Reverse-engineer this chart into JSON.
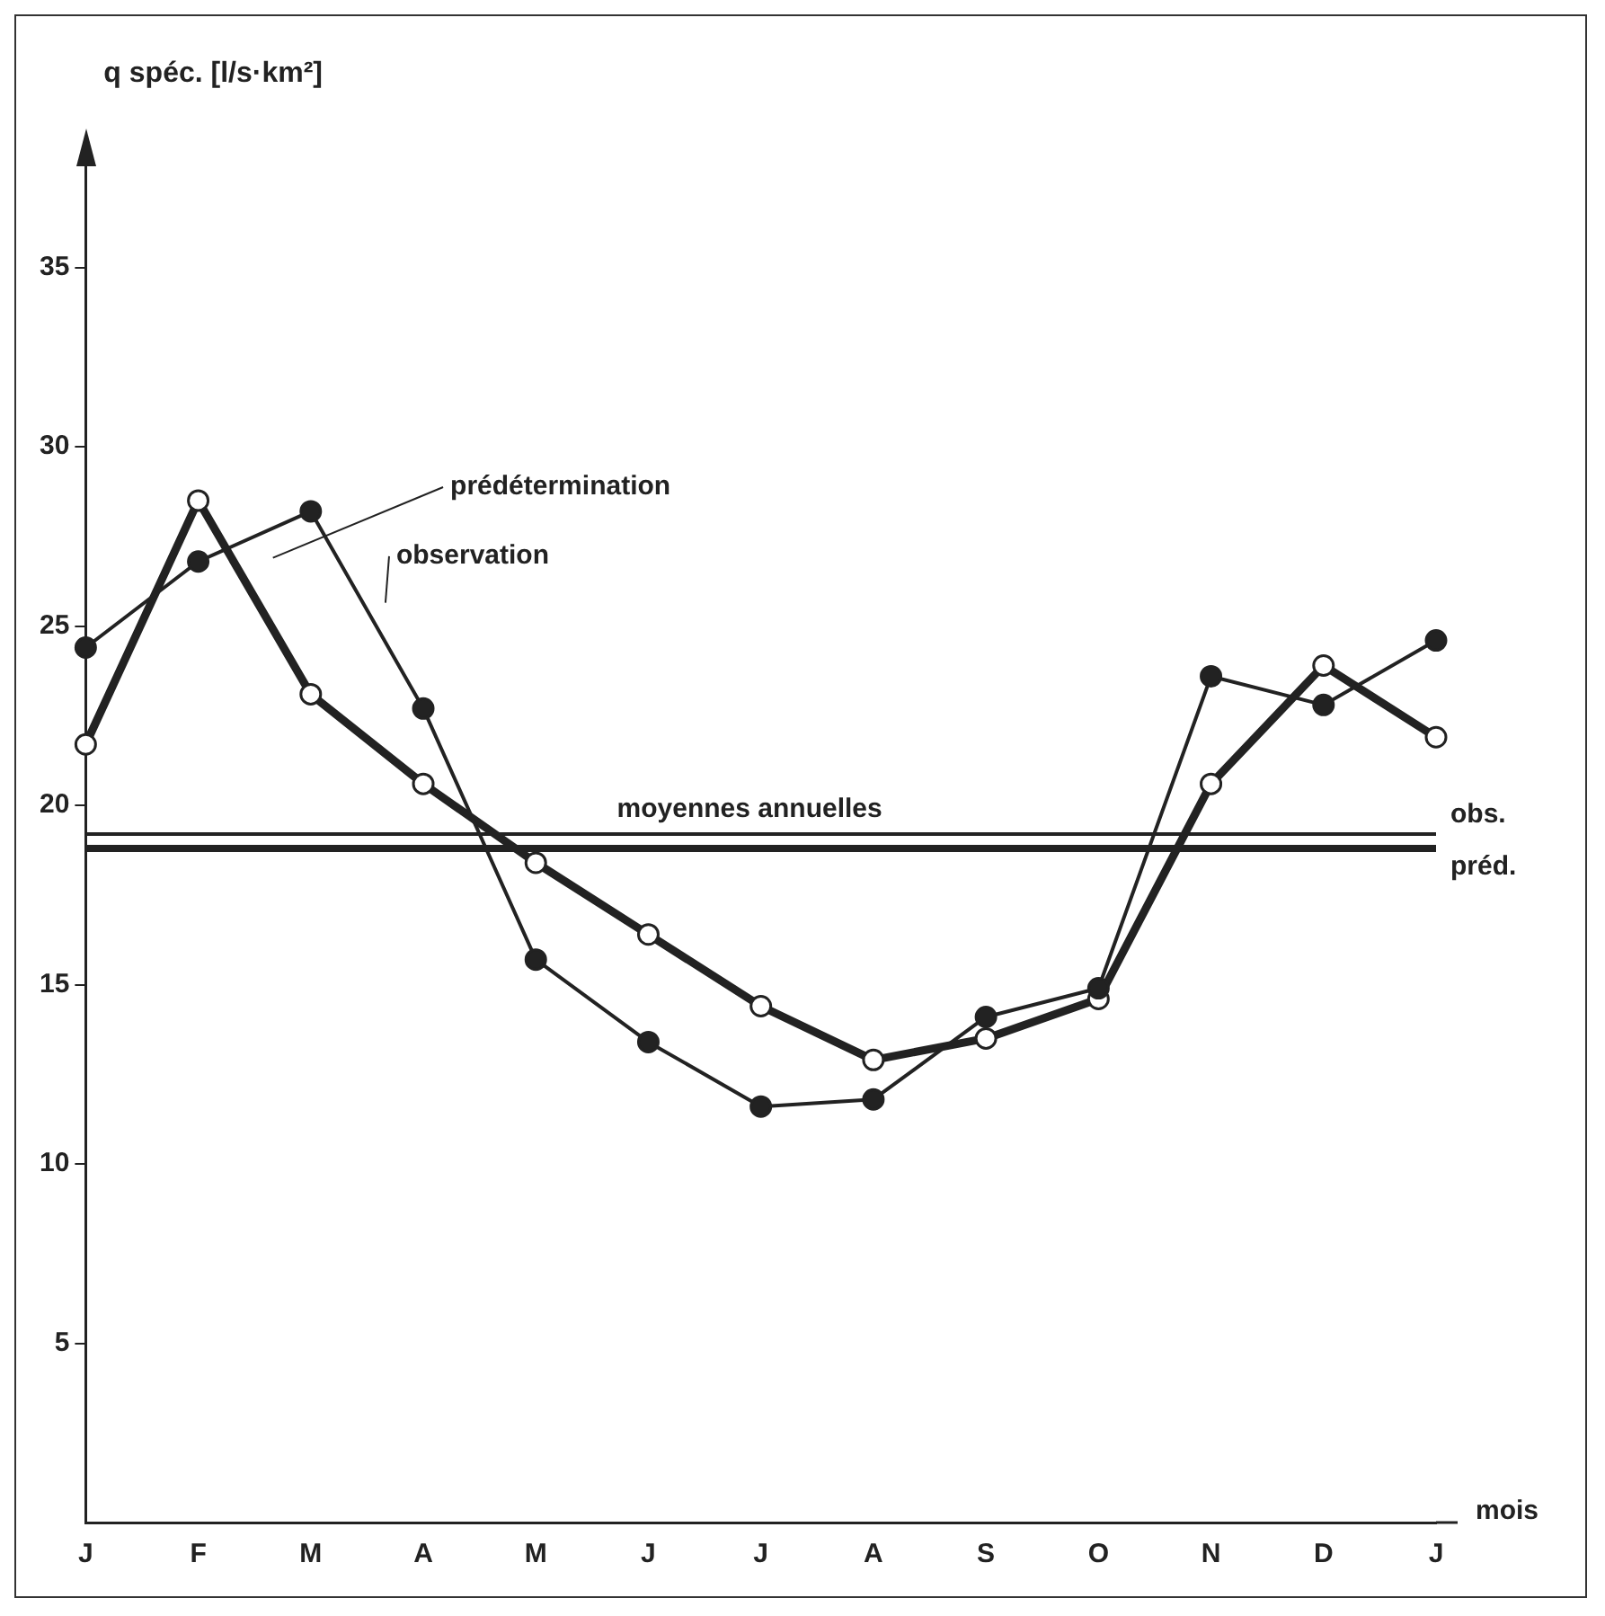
{
  "chart_data": {
    "type": "line",
    "ylabel": "q spéc. [l/s·km²]",
    "xlabel": "mois",
    "categories": [
      "J",
      "F",
      "M",
      "A",
      "M",
      "J",
      "J",
      "A",
      "S",
      "O",
      "N",
      "D",
      "J"
    ],
    "series": [
      {
        "name": "observation",
        "color": "#222222",
        "values": [
          24.4,
          26.8,
          28.2,
          22.7,
          15.7,
          13.4,
          11.6,
          11.8,
          14.1,
          14.9,
          23.6,
          22.8,
          24.6
        ]
      },
      {
        "name": "prédétermination",
        "color": "#222222",
        "values": [
          21.7,
          28.5,
          23.1,
          20.6,
          18.4,
          16.4,
          14.4,
          12.9,
          13.5,
          14.6,
          20.6,
          23.9,
          21.9
        ]
      }
    ],
    "ylim": [
      0,
      38.5
    ],
    "yticks": [
      5,
      10,
      15,
      20,
      25,
      30,
      35
    ],
    "ref_lines": [
      {
        "axis": "y",
        "value": 19.2,
        "label": "obs.",
        "color": "#222222"
      },
      {
        "axis": "y",
        "value": 18.8,
        "label": "préd.",
        "color": "#222222"
      }
    ],
    "annotations": [
      "moyennes annuelles"
    ],
    "grid": false,
    "legend": false,
    "marker": "circle"
  }
}
